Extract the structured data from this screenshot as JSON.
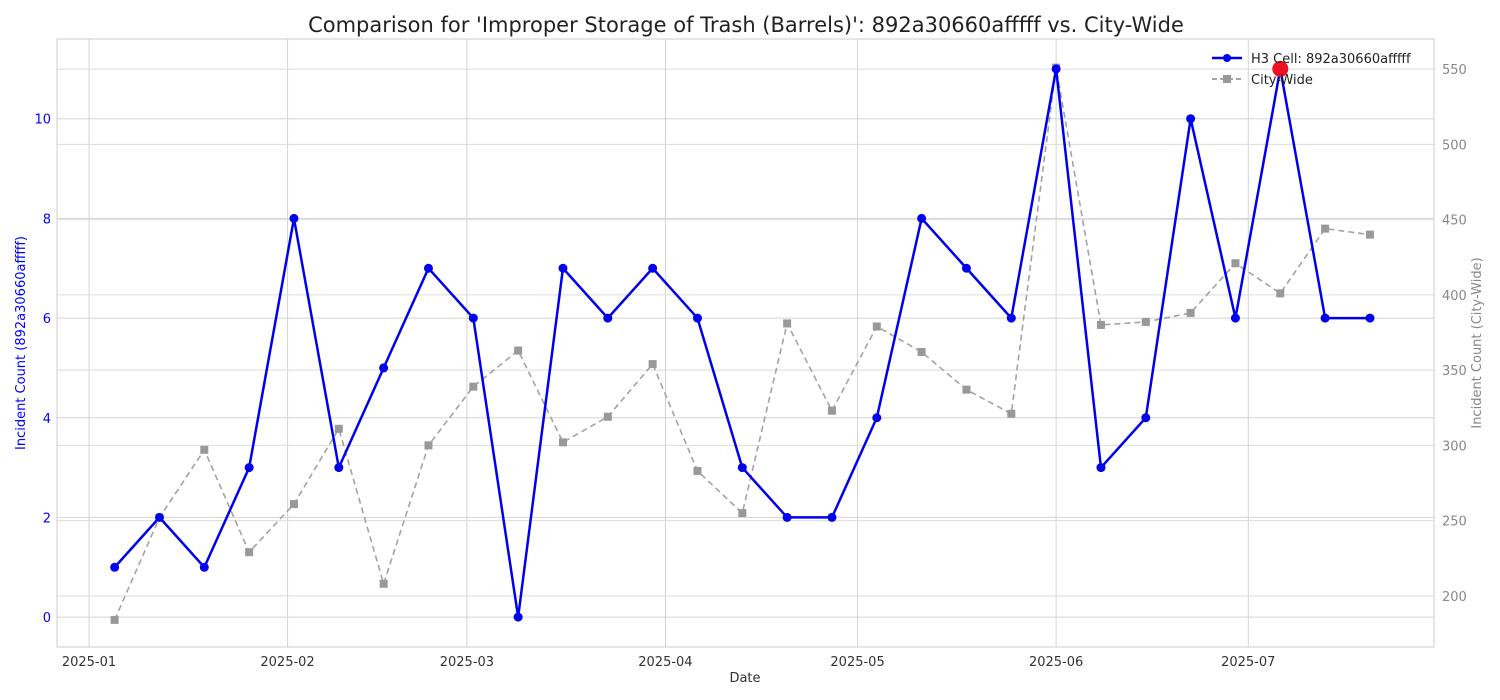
{
  "chart_data": {
    "type": "line",
    "title": "Comparison for 'Improper Storage of Trash (Barrels)': 892a30660afffff vs. City-Wide",
    "xlabel": "Date",
    "ylabel_left": "Incident Count (892a30660afffff)",
    "ylabel_right": "Incident Count (City-Wide)",
    "x_ticks": [
      "2025-01",
      "2025-02",
      "2025-03",
      "2025-04",
      "2025-05",
      "2025-06",
      "2025-07"
    ],
    "y_left_ticks": [
      0,
      2,
      4,
      6,
      8,
      10
    ],
    "y_right_ticks": [
      200,
      250,
      300,
      350,
      400,
      450,
      500,
      550
    ],
    "ylim_left": [
      -0.6,
      11.6
    ],
    "ylim_right": [
      166,
      570
    ],
    "x_range": [
      "2024-12-27",
      "2025-07-30"
    ],
    "grid": true,
    "legend_position": "top-right",
    "x": [
      "2025-01-05",
      "2025-01-12",
      "2025-01-19",
      "2025-01-26",
      "2025-02-02",
      "2025-02-09",
      "2025-02-16",
      "2025-02-23",
      "2025-03-02",
      "2025-03-09",
      "2025-03-16",
      "2025-03-23",
      "2025-03-30",
      "2025-04-06",
      "2025-04-13",
      "2025-04-20",
      "2025-04-27",
      "2025-05-04",
      "2025-05-11",
      "2025-05-18",
      "2025-05-25",
      "2025-06-01",
      "2025-06-08",
      "2025-06-15",
      "2025-06-22",
      "2025-06-29",
      "2025-07-06",
      "2025-07-13",
      "2025-07-20"
    ],
    "series": [
      {
        "name": "H3 Cell: 892a30660afffff",
        "axis": "left",
        "color": "#0000ee",
        "style": "solid",
        "marker": "circle",
        "values": [
          1,
          2,
          1,
          3,
          8,
          3,
          5,
          7,
          6,
          0,
          7,
          6,
          7,
          6,
          3,
          2,
          2,
          4,
          8,
          7,
          6,
          11,
          3,
          4,
          10,
          6,
          11,
          6,
          6
        ]
      },
      {
        "name": "City-Wide",
        "axis": "right",
        "color": "#999999",
        "style": "dashed",
        "marker": "square",
        "values": [
          184,
          252,
          297,
          229,
          261,
          311,
          208,
          300,
          339,
          363,
          302,
          319,
          354,
          283,
          255,
          381,
          323,
          379,
          362,
          337,
          321,
          551,
          380,
          382,
          388,
          421,
          401,
          444,
          440
        ]
      }
    ],
    "highlight": {
      "date": "2025-07-06",
      "value": 11,
      "color": "#ee1122"
    }
  }
}
